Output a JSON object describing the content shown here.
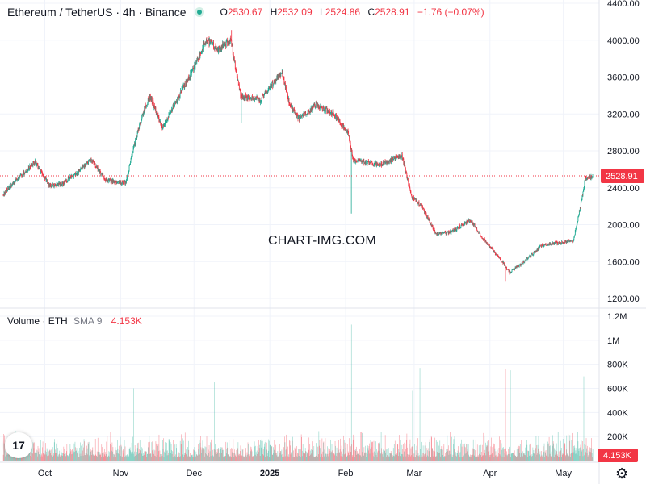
{
  "header": {
    "symbol_title": "Ethereum / TetherUS · 4h · Binance",
    "ohlc": {
      "o_label": "O",
      "o_value": "2530.67",
      "h_label": "H",
      "h_value": "2532.09",
      "l_label": "L",
      "l_value": "2524.86",
      "c_label": "C",
      "c_value": "2528.91",
      "change": "−1.76 (−0.07%)"
    }
  },
  "volume_legend": {
    "label": "Volume · ETH",
    "sma": "SMA 9",
    "value": "4.153K"
  },
  "watermark": "CHART-IMG.COM",
  "logo_text": "17",
  "colors": {
    "up": "#22ab94",
    "down": "#f23645",
    "grid": "#f0f3fa",
    "text": "#131722"
  },
  "chart_data": {
    "type": "candlestick",
    "price_axis": {
      "ticks": [
        1200,
        1600,
        2000,
        2400,
        2800,
        3200,
        3600,
        4000,
        4400
      ],
      "tick_labels": [
        "1200.00",
        "1600.00",
        "2000.00",
        "2400.00",
        "2800.00",
        "3200.00",
        "3600.00",
        "4000.00",
        "4400.00"
      ],
      "ylim": [
        1200,
        4400
      ]
    },
    "volume_axis": {
      "ticks": [
        200000,
        400000,
        600000,
        800000,
        1000000,
        1200000
      ],
      "tick_labels": [
        "200K",
        "400K",
        "600K",
        "800K",
        "1M",
        "1.2M"
      ],
      "ylim": [
        0,
        1200000
      ]
    },
    "x_axis": {
      "labels": [
        "Oct",
        "Nov",
        "Dec",
        "2025",
        "Feb",
        "Mar",
        "Apr",
        "May"
      ],
      "dates": [
        "2024-10-01",
        "2024-11-01",
        "2024-12-01",
        "2025-01-01",
        "2025-02-01",
        "2025-03-01",
        "2025-04-01",
        "2025-05-01"
      ],
      "range": [
        "2024-09-14",
        "2025-05-13"
      ]
    },
    "last_price": 2528.91,
    "last_price_label": "2528.91",
    "last_volume_label": "4.153K",
    "price_path": [
      [
        "2024-09-14",
        2330
      ],
      [
        "2024-09-20",
        2500
      ],
      [
        "2024-09-27",
        2680
      ],
      [
        "2024-10-03",
        2420
      ],
      [
        "2024-10-08",
        2440
      ],
      [
        "2024-10-14",
        2560
      ],
      [
        "2024-10-20",
        2700
      ],
      [
        "2024-10-26",
        2480
      ],
      [
        "2024-11-03",
        2450
      ],
      [
        "2024-11-06",
        2800
      ],
      [
        "2024-11-10",
        3200
      ],
      [
        "2024-11-13",
        3400
      ],
      [
        "2024-11-18",
        3050
      ],
      [
        "2024-11-25",
        3400
      ],
      [
        "2024-12-01",
        3700
      ],
      [
        "2024-12-06",
        4000
      ],
      [
        "2024-12-11",
        3900
      ],
      [
        "2024-12-16",
        4000
      ],
      [
        "2024-12-20",
        3400
      ],
      [
        "2024-12-28",
        3350
      ],
      [
        "2025-01-06",
        3650
      ],
      [
        "2025-01-09",
        3300
      ],
      [
        "2025-01-13",
        3150
      ],
      [
        "2025-01-20",
        3300
      ],
      [
        "2025-01-27",
        3200
      ],
      [
        "2025-02-02",
        3000
      ],
      [
        "2025-02-04",
        2700
      ],
      [
        "2025-02-15",
        2650
      ],
      [
        "2025-02-24",
        2750
      ],
      [
        "2025-02-28",
        2300
      ],
      [
        "2025-03-04",
        2200
      ],
      [
        "2025-03-10",
        1900
      ],
      [
        "2025-03-16",
        1920
      ],
      [
        "2025-03-24",
        2050
      ],
      [
        "2025-03-30",
        1820
      ],
      [
        "2025-04-06",
        1600
      ],
      [
        "2025-04-09",
        1480
      ],
      [
        "2025-04-15",
        1600
      ],
      [
        "2025-04-22",
        1770
      ],
      [
        "2025-04-28",
        1800
      ],
      [
        "2025-05-05",
        1820
      ],
      [
        "2025-05-08",
        2200
      ],
      [
        "2025-05-10",
        2500
      ],
      [
        "2025-05-13",
        2528.91
      ]
    ],
    "wick_extremes": [
      [
        "2025-02-03",
        2120,
        "low"
      ],
      [
        "2025-04-07",
        1390,
        "low"
      ],
      [
        "2024-12-16",
        4110,
        "high"
      ],
      [
        "2024-12-20",
        3100,
        "low"
      ],
      [
        "2025-01-13",
        2920,
        "low"
      ]
    ],
    "volume_spikes": [
      [
        "2025-02-03",
        1130000
      ],
      [
        "2025-03-03",
        770000
      ],
      [
        "2025-04-07",
        760000
      ],
      [
        "2025-04-09",
        750000
      ],
      [
        "2025-05-09",
        700000
      ],
      [
        "2024-12-09",
        650000
      ],
      [
        "2025-03-14",
        620000
      ],
      [
        "2025-02-28",
        580000
      ],
      [
        "2024-11-06",
        600000
      ]
    ]
  }
}
